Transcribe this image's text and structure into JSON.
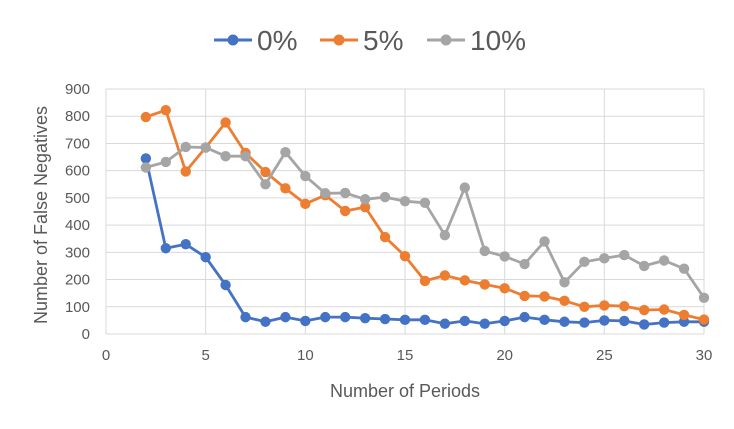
{
  "chart_data": {
    "type": "line",
    "title": "",
    "xlabel": "Number of Periods",
    "ylabel": "Number of False Negatives",
    "xlim": [
      0,
      30
    ],
    "ylim": [
      0,
      900
    ],
    "x_ticks": [
      "0",
      "5",
      "10",
      "15",
      "20",
      "25",
      "30"
    ],
    "y_ticks": [
      "0",
      "100",
      "200",
      "300",
      "400",
      "500",
      "600",
      "700",
      "800",
      "900"
    ],
    "grid": true,
    "legend_position": "top",
    "x": [
      2,
      3,
      4,
      5,
      6,
      7,
      8,
      9,
      10,
      11,
      12,
      13,
      14,
      15,
      16,
      17,
      18,
      19,
      20,
      21,
      22,
      23,
      24,
      25,
      26,
      27,
      28,
      29,
      30
    ],
    "series": [
      {
        "name": "0%",
        "color": "#4472C4",
        "values": [
          645,
          315,
          330,
          282,
          180,
          62,
          45,
          62,
          48,
          62,
          62,
          58,
          55,
          52,
          52,
          38,
          48,
          38,
          48,
          62,
          52,
          45,
          42,
          50,
          48,
          35,
          42,
          45,
          45
        ]
      },
      {
        "name": "5%",
        "color": "#ED7D31",
        "values": [
          797,
          822,
          597,
          685,
          777,
          665,
          595,
          535,
          478,
          510,
          452,
          466,
          356,
          286,
          195,
          215,
          197,
          182,
          168,
          140,
          138,
          122,
          100,
          105,
          102,
          88,
          90,
          70,
          53
        ]
      },
      {
        "name": "10%",
        "color": "#A5A5A5",
        "values": [
          612,
          632,
          687,
          685,
          653,
          653,
          550,
          668,
          580,
          517,
          518,
          495,
          503,
          488,
          482,
          363,
          538,
          305,
          285,
          257,
          340,
          190,
          265,
          278,
          290,
          250,
          270,
          240,
          133
        ]
      }
    ]
  }
}
